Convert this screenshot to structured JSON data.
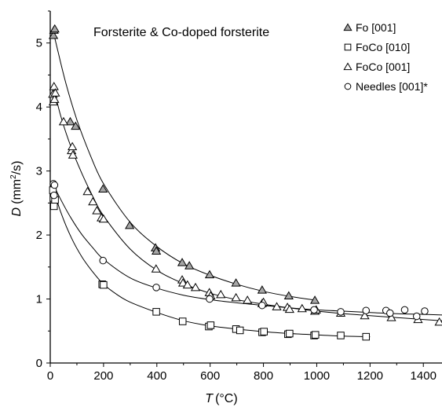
{
  "chart_data": {
    "type": "scatter",
    "title": "Forsterite & Co-doped forsterite",
    "xlabel": {
      "symbol": "T",
      "unit": "(°C)"
    },
    "ylabel": {
      "symbol": "D",
      "unit_pre": "(mm",
      "unit_sup": "2",
      "unit_post": "/s)"
    },
    "xlim": [
      0,
      1470
    ],
    "ylim": [
      0,
      5.5
    ],
    "xticks": [
      "0",
      "200",
      "400",
      "600",
      "800",
      "1000",
      "1200",
      "1400"
    ],
    "yticks": [
      "0",
      "1",
      "2",
      "3",
      "4",
      "5"
    ],
    "grid": false,
    "legend_position": "top-right",
    "colors": {
      "fo_fill": "#a6a6a6",
      "stroke": "#000000",
      "curve": "#000000"
    },
    "series": [
      {
        "name": "Fo [001]",
        "marker": "triangle-filled",
        "points": [
          [
            12,
            5.12
          ],
          [
            14,
            5.2
          ],
          [
            17,
            5.22
          ],
          [
            75,
            3.77
          ],
          [
            95,
            3.7
          ],
          [
            198,
            2.72
          ],
          [
            298,
            2.15
          ],
          [
            395,
            1.8
          ],
          [
            398,
            1.75
          ],
          [
            495,
            1.57
          ],
          [
            522,
            1.52
          ],
          [
            598,
            1.38
          ],
          [
            697,
            1.25
          ],
          [
            795,
            1.14
          ],
          [
            895,
            1.05
          ],
          [
            993,
            0.98
          ]
        ],
        "fit": [
          [
            10,
            5.2
          ],
          [
            30,
            4.85
          ],
          [
            60,
            4.35
          ],
          [
            100,
            3.8
          ],
          [
            150,
            3.25
          ],
          [
            200,
            2.8
          ],
          [
            300,
            2.2
          ],
          [
            400,
            1.82
          ],
          [
            500,
            1.55
          ],
          [
            600,
            1.37
          ],
          [
            700,
            1.23
          ],
          [
            800,
            1.12
          ],
          [
            900,
            1.04
          ],
          [
            1000,
            0.98
          ]
        ]
      },
      {
        "name": "FoCo [010]",
        "marker": "square",
        "points": [
          [
            10,
            2.7
          ],
          [
            12,
            2.58
          ],
          [
            14,
            2.45
          ],
          [
            18,
            2.55
          ],
          [
            195,
            1.23
          ],
          [
            200,
            1.22
          ],
          [
            398,
            0.8
          ],
          [
            497,
            0.65
          ],
          [
            595,
            0.57
          ],
          [
            602,
            0.59
          ],
          [
            697,
            0.53
          ],
          [
            712,
            0.51
          ],
          [
            795,
            0.48
          ],
          [
            802,
            0.49
          ],
          [
            892,
            0.45
          ],
          [
            898,
            0.46
          ],
          [
            990,
            0.43
          ],
          [
            995,
            0.44
          ],
          [
            1090,
            0.43
          ],
          [
            1185,
            0.41
          ]
        ],
        "fit": [
          [
            10,
            2.75
          ],
          [
            40,
            2.35
          ],
          [
            80,
            1.95
          ],
          [
            120,
            1.65
          ],
          [
            160,
            1.42
          ],
          [
            200,
            1.23
          ],
          [
            250,
            1.07
          ],
          [
            300,
            0.95
          ],
          [
            400,
            0.79
          ],
          [
            500,
            0.66
          ],
          [
            600,
            0.58
          ],
          [
            700,
            0.53
          ],
          [
            800,
            0.49
          ],
          [
            900,
            0.46
          ],
          [
            1000,
            0.44
          ],
          [
            1100,
            0.42
          ],
          [
            1200,
            0.41
          ]
        ]
      },
      {
        "name": "FoCo [001]",
        "marker": "triangle-open",
        "points": [
          [
            10,
            4.2
          ],
          [
            12,
            4.08
          ],
          [
            14,
            4.32
          ],
          [
            16,
            4.12
          ],
          [
            19,
            4.22
          ],
          [
            50,
            3.77
          ],
          [
            80,
            3.32
          ],
          [
            83,
            3.38
          ],
          [
            85,
            3.25
          ],
          [
            140,
            2.68
          ],
          [
            160,
            2.52
          ],
          [
            175,
            2.38
          ],
          [
            192,
            2.27
          ],
          [
            200,
            2.25
          ],
          [
            397,
            1.47
          ],
          [
            495,
            1.3
          ],
          [
            498,
            1.25
          ],
          [
            515,
            1.22
          ],
          [
            545,
            1.18
          ],
          [
            597,
            1.1
          ],
          [
            602,
            1.05
          ],
          [
            640,
            1.07
          ],
          [
            697,
            1.02
          ],
          [
            740,
            0.98
          ],
          [
            795,
            0.93
          ],
          [
            800,
            0.95
          ],
          [
            850,
            0.88
          ],
          [
            890,
            0.87
          ],
          [
            898,
            0.84
          ],
          [
            945,
            0.85
          ],
          [
            993,
            0.81
          ],
          [
            998,
            0.83
          ],
          [
            1090,
            0.78
          ],
          [
            1180,
            0.74
          ],
          [
            1280,
            0.71
          ],
          [
            1380,
            0.68
          ],
          [
            1460,
            0.64
          ]
        ],
        "fit": [
          [
            10,
            4.35
          ],
          [
            40,
            3.85
          ],
          [
            80,
            3.35
          ],
          [
            120,
            2.95
          ],
          [
            160,
            2.6
          ],
          [
            200,
            2.3
          ],
          [
            300,
            1.78
          ],
          [
            400,
            1.45
          ],
          [
            500,
            1.24
          ],
          [
            600,
            1.09
          ],
          [
            700,
            0.99
          ],
          [
            800,
            0.92
          ],
          [
            900,
            0.86
          ],
          [
            1000,
            0.81
          ],
          [
            1100,
            0.77
          ],
          [
            1200,
            0.74
          ],
          [
            1300,
            0.71
          ],
          [
            1400,
            0.68
          ],
          [
            1470,
            0.66
          ]
        ]
      },
      {
        "name": "Needles [001]*",
        "marker": "circle-open",
        "points": [
          [
            12,
            2.8
          ],
          [
            14,
            2.62
          ],
          [
            16,
            2.78
          ],
          [
            198,
            1.6
          ],
          [
            398,
            1.18
          ],
          [
            598,
            1.0
          ],
          [
            795,
            0.9
          ],
          [
            990,
            0.83
          ],
          [
            1090,
            0.8
          ],
          [
            1185,
            0.82
          ],
          [
            1260,
            0.82
          ],
          [
            1275,
            0.78
          ],
          [
            1330,
            0.83
          ],
          [
            1375,
            0.73
          ],
          [
            1405,
            0.81
          ]
        ],
        "fit": [
          [
            10,
            2.8
          ],
          [
            40,
            2.55
          ],
          [
            80,
            2.25
          ],
          [
            120,
            2.0
          ],
          [
            160,
            1.8
          ],
          [
            200,
            1.62
          ],
          [
            300,
            1.33
          ],
          [
            400,
            1.17
          ],
          [
            500,
            1.06
          ],
          [
            600,
            0.99
          ],
          [
            700,
            0.94
          ],
          [
            800,
            0.9
          ],
          [
            900,
            0.86
          ],
          [
            1000,
            0.83
          ],
          [
            1100,
            0.81
          ],
          [
            1200,
            0.79
          ],
          [
            1300,
            0.77
          ],
          [
            1400,
            0.76
          ],
          [
            1470,
            0.75
          ]
        ]
      }
    ]
  }
}
